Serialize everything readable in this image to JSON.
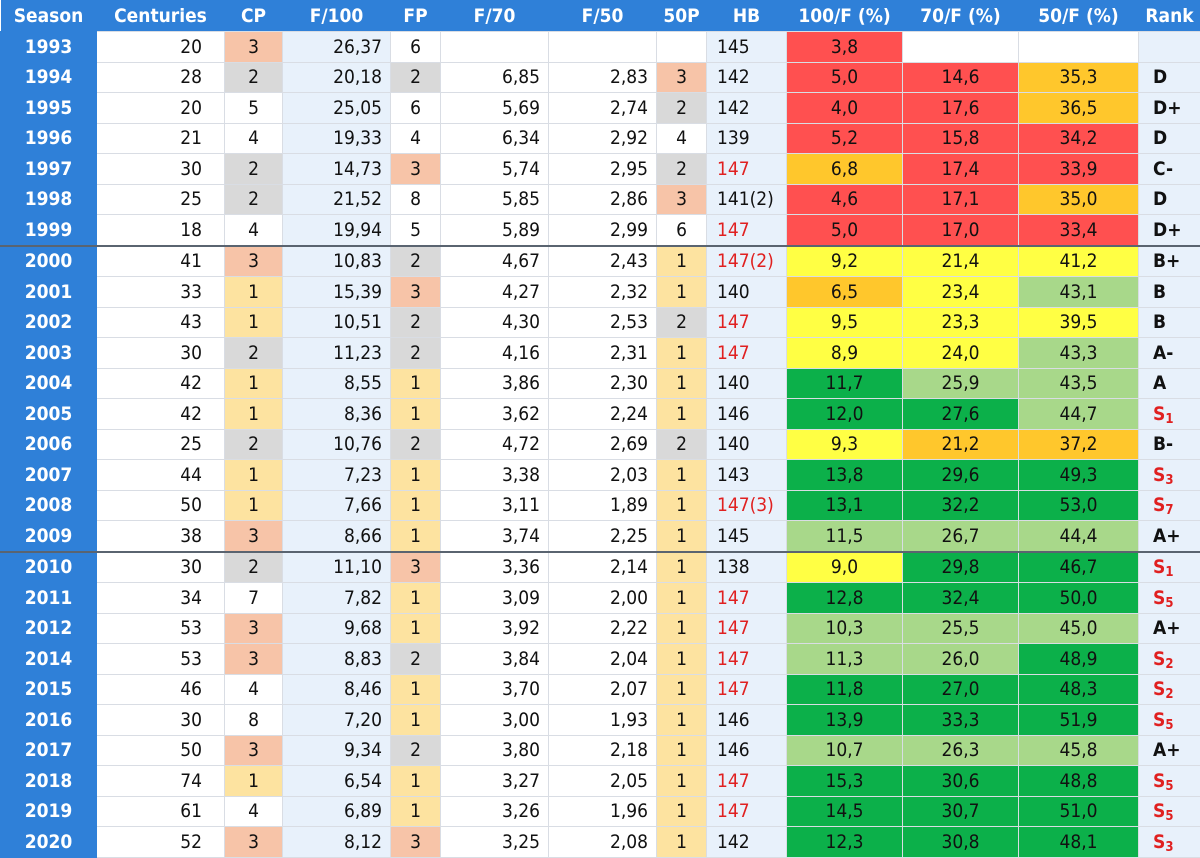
{
  "chart_data": {
    "type": "table",
    "columns": [
      "Season",
      "Centuries",
      "CP",
      "F/100",
      "FP",
      "F/70",
      "F/50",
      "50P",
      "HB",
      "100/F (%)",
      "70/F (%)",
      "50/F (%)",
      "Rank"
    ],
    "rows": [
      {
        "season": "1993",
        "centuries": "20",
        "cp": "3",
        "f100": "26,37",
        "fp": "6",
        "f70": "",
        "f50": "",
        "p50": "",
        "hb": "145",
        "pct100": "3,8",
        "pct70": "",
        "pct50": "",
        "rank": "",
        "rank_sub": ""
      },
      {
        "season": "1994",
        "centuries": "28",
        "cp": "2",
        "f100": "20,18",
        "fp": "2",
        "f70": "6,85",
        "f50": "2,83",
        "p50": "3",
        "hb": "142",
        "pct100": "5,0",
        "pct70": "14,6",
        "pct50": "35,3",
        "rank": "D",
        "rank_sub": ""
      },
      {
        "season": "1995",
        "centuries": "20",
        "cp": "5",
        "f100": "25,05",
        "fp": "6",
        "f70": "5,69",
        "f50": "2,74",
        "p50": "2",
        "hb": "142",
        "pct100": "4,0",
        "pct70": "17,6",
        "pct50": "36,5",
        "rank": "D+",
        "rank_sub": ""
      },
      {
        "season": "1996",
        "centuries": "21",
        "cp": "4",
        "f100": "19,33",
        "fp": "4",
        "f70": "6,34",
        "f50": "2,92",
        "p50": "4",
        "hb": "139",
        "pct100": "5,2",
        "pct70": "15,8",
        "pct50": "34,2",
        "rank": "D",
        "rank_sub": ""
      },
      {
        "season": "1997",
        "centuries": "30",
        "cp": "2",
        "f100": "14,73",
        "fp": "3",
        "f70": "5,74",
        "f50": "2,95",
        "p50": "2",
        "hb": "147",
        "pct100": "6,8",
        "pct70": "17,4",
        "pct50": "33,9",
        "rank": "C-",
        "rank_sub": ""
      },
      {
        "season": "1998",
        "centuries": "25",
        "cp": "2",
        "f100": "21,52",
        "fp": "8",
        "f70": "5,85",
        "f50": "2,86",
        "p50": "3",
        "hb": "141(2)",
        "pct100": "4,6",
        "pct70": "17,1",
        "pct50": "35,0",
        "rank": "D",
        "rank_sub": ""
      },
      {
        "season": "1999",
        "centuries": "18",
        "cp": "4",
        "f100": "19,94",
        "fp": "5",
        "f70": "5,89",
        "f50": "2,99",
        "p50": "6",
        "hb": "147",
        "pct100": "5,0",
        "pct70": "17,0",
        "pct50": "33,4",
        "rank": "D+",
        "rank_sub": ""
      },
      {
        "season": "2000",
        "centuries": "41",
        "cp": "3",
        "f100": "10,83",
        "fp": "2",
        "f70": "4,67",
        "f50": "2,43",
        "p50": "1",
        "hb": "147(2)",
        "pct100": "9,2",
        "pct70": "21,4",
        "pct50": "41,2",
        "rank": "B+",
        "rank_sub": ""
      },
      {
        "season": "2001",
        "centuries": "33",
        "cp": "1",
        "f100": "15,39",
        "fp": "3",
        "f70": "4,27",
        "f50": "2,32",
        "p50": "1",
        "hb": "140",
        "pct100": "6,5",
        "pct70": "23,4",
        "pct50": "43,1",
        "rank": "B",
        "rank_sub": ""
      },
      {
        "season": "2002",
        "centuries": "43",
        "cp": "1",
        "f100": "10,51",
        "fp": "2",
        "f70": "4,30",
        "f50": "2,53",
        "p50": "2",
        "hb": "147",
        "pct100": "9,5",
        "pct70": "23,3",
        "pct50": "39,5",
        "rank": "B",
        "rank_sub": ""
      },
      {
        "season": "2003",
        "centuries": "30",
        "cp": "2",
        "f100": "11,23",
        "fp": "2",
        "f70": "4,16",
        "f50": "2,31",
        "p50": "1",
        "hb": "147",
        "pct100": "8,9",
        "pct70": "24,0",
        "pct50": "43,3",
        "rank": "A-",
        "rank_sub": ""
      },
      {
        "season": "2004",
        "centuries": "42",
        "cp": "1",
        "f100": "8,55",
        "fp": "1",
        "f70": "3,86",
        "f50": "2,30",
        "p50": "1",
        "hb": "140",
        "pct100": "11,7",
        "pct70": "25,9",
        "pct50": "43,5",
        "rank": "A",
        "rank_sub": ""
      },
      {
        "season": "2005",
        "centuries": "42",
        "cp": "1",
        "f100": "8,36",
        "fp": "1",
        "f70": "3,62",
        "f50": "2,24",
        "p50": "1",
        "hb": "146",
        "pct100": "12,0",
        "pct70": "27,6",
        "pct50": "44,7",
        "rank": "S",
        "rank_sub": "1"
      },
      {
        "season": "2006",
        "centuries": "25",
        "cp": "2",
        "f100": "10,76",
        "fp": "2",
        "f70": "4,72",
        "f50": "2,69",
        "p50": "2",
        "hb": "140",
        "pct100": "9,3",
        "pct70": "21,2",
        "pct50": "37,2",
        "rank": "B-",
        "rank_sub": ""
      },
      {
        "season": "2007",
        "centuries": "44",
        "cp": "1",
        "f100": "7,23",
        "fp": "1",
        "f70": "3,38",
        "f50": "2,03",
        "p50": "1",
        "hb": "143",
        "pct100": "13,8",
        "pct70": "29,6",
        "pct50": "49,3",
        "rank": "S",
        "rank_sub": "3"
      },
      {
        "season": "2008",
        "centuries": "50",
        "cp": "1",
        "f100": "7,66",
        "fp": "1",
        "f70": "3,11",
        "f50": "1,89",
        "p50": "1",
        "hb": "147(3)",
        "pct100": "13,1",
        "pct70": "32,2",
        "pct50": "53,0",
        "rank": "S",
        "rank_sub": "7"
      },
      {
        "season": "2009",
        "centuries": "38",
        "cp": "3",
        "f100": "8,66",
        "fp": "1",
        "f70": "3,74",
        "f50": "2,25",
        "p50": "1",
        "hb": "145",
        "pct100": "11,5",
        "pct70": "26,7",
        "pct50": "44,4",
        "rank": "A+",
        "rank_sub": ""
      },
      {
        "season": "2010",
        "centuries": "30",
        "cp": "2",
        "f100": "11,10",
        "fp": "3",
        "f70": "3,36",
        "f50": "2,14",
        "p50": "1",
        "hb": "138",
        "pct100": "9,0",
        "pct70": "29,8",
        "pct50": "46,7",
        "rank": "S",
        "rank_sub": "1"
      },
      {
        "season": "2011",
        "centuries": "34",
        "cp": "7",
        "f100": "7,82",
        "fp": "1",
        "f70": "3,09",
        "f50": "2,00",
        "p50": "1",
        "hb": "147",
        "pct100": "12,8",
        "pct70": "32,4",
        "pct50": "50,0",
        "rank": "S",
        "rank_sub": "5"
      },
      {
        "season": "2012",
        "centuries": "53",
        "cp": "3",
        "f100": "9,68",
        "fp": "1",
        "f70": "3,92",
        "f50": "2,22",
        "p50": "1",
        "hb": "147",
        "pct100": "10,3",
        "pct70": "25,5",
        "pct50": "45,0",
        "rank": "A+",
        "rank_sub": ""
      },
      {
        "season": "2014",
        "centuries": "53",
        "cp": "3",
        "f100": "8,83",
        "fp": "2",
        "f70": "3,84",
        "f50": "2,04",
        "p50": "1",
        "hb": "147",
        "pct100": "11,3",
        "pct70": "26,0",
        "pct50": "48,9",
        "rank": "S",
        "rank_sub": "2"
      },
      {
        "season": "2015",
        "centuries": "46",
        "cp": "4",
        "f100": "8,46",
        "fp": "1",
        "f70": "3,70",
        "f50": "2,07",
        "p50": "1",
        "hb": "147",
        "pct100": "11,8",
        "pct70": "27,0",
        "pct50": "48,3",
        "rank": "S",
        "rank_sub": "2"
      },
      {
        "season": "2016",
        "centuries": "30",
        "cp": "8",
        "f100": "7,20",
        "fp": "1",
        "f70": "3,00",
        "f50": "1,93",
        "p50": "1",
        "hb": "146",
        "pct100": "13,9",
        "pct70": "33,3",
        "pct50": "51,9",
        "rank": "S",
        "rank_sub": "5"
      },
      {
        "season": "2017",
        "centuries": "50",
        "cp": "3",
        "f100": "9,34",
        "fp": "2",
        "f70": "3,80",
        "f50": "2,18",
        "p50": "1",
        "hb": "146",
        "pct100": "10,7",
        "pct70": "26,3",
        "pct50": "45,8",
        "rank": "A+",
        "rank_sub": ""
      },
      {
        "season": "2018",
        "centuries": "74",
        "cp": "1",
        "f100": "6,54",
        "fp": "1",
        "f70": "3,27",
        "f50": "2,05",
        "p50": "1",
        "hb": "147",
        "pct100": "15,3",
        "pct70": "30,6",
        "pct50": "48,8",
        "rank": "S",
        "rank_sub": "5"
      },
      {
        "season": "2019",
        "centuries": "61",
        "cp": "4",
        "f100": "6,89",
        "fp": "1",
        "f70": "3,26",
        "f50": "1,96",
        "p50": "1",
        "hb": "147",
        "pct100": "14,5",
        "pct70": "30,7",
        "pct50": "51,0",
        "rank": "S",
        "rank_sub": "5"
      },
      {
        "season": "2020",
        "centuries": "52",
        "cp": "3",
        "f100": "8,12",
        "fp": "3",
        "f70": "3,25",
        "f50": "2,08",
        "p50": "1",
        "hb": "142",
        "pct100": "12,3",
        "pct70": "30,8",
        "pct50": "48,1",
        "rank": "S",
        "rank_sub": "3"
      }
    ],
    "group_breaks_before": [
      "2000",
      "2010"
    ],
    "colors": {
      "header": "#2f80d8",
      "red": "#ff5050",
      "orange": "#ffc72c",
      "yellow": "#ffff44",
      "light_green": "#a8d88a",
      "green": "#0cb04a",
      "position_gray": "#d9d9d9",
      "position_salmon": "#f7c4a8",
      "position_yellow": "#fde3a0",
      "highlight_text_red": "#e02020"
    }
  }
}
